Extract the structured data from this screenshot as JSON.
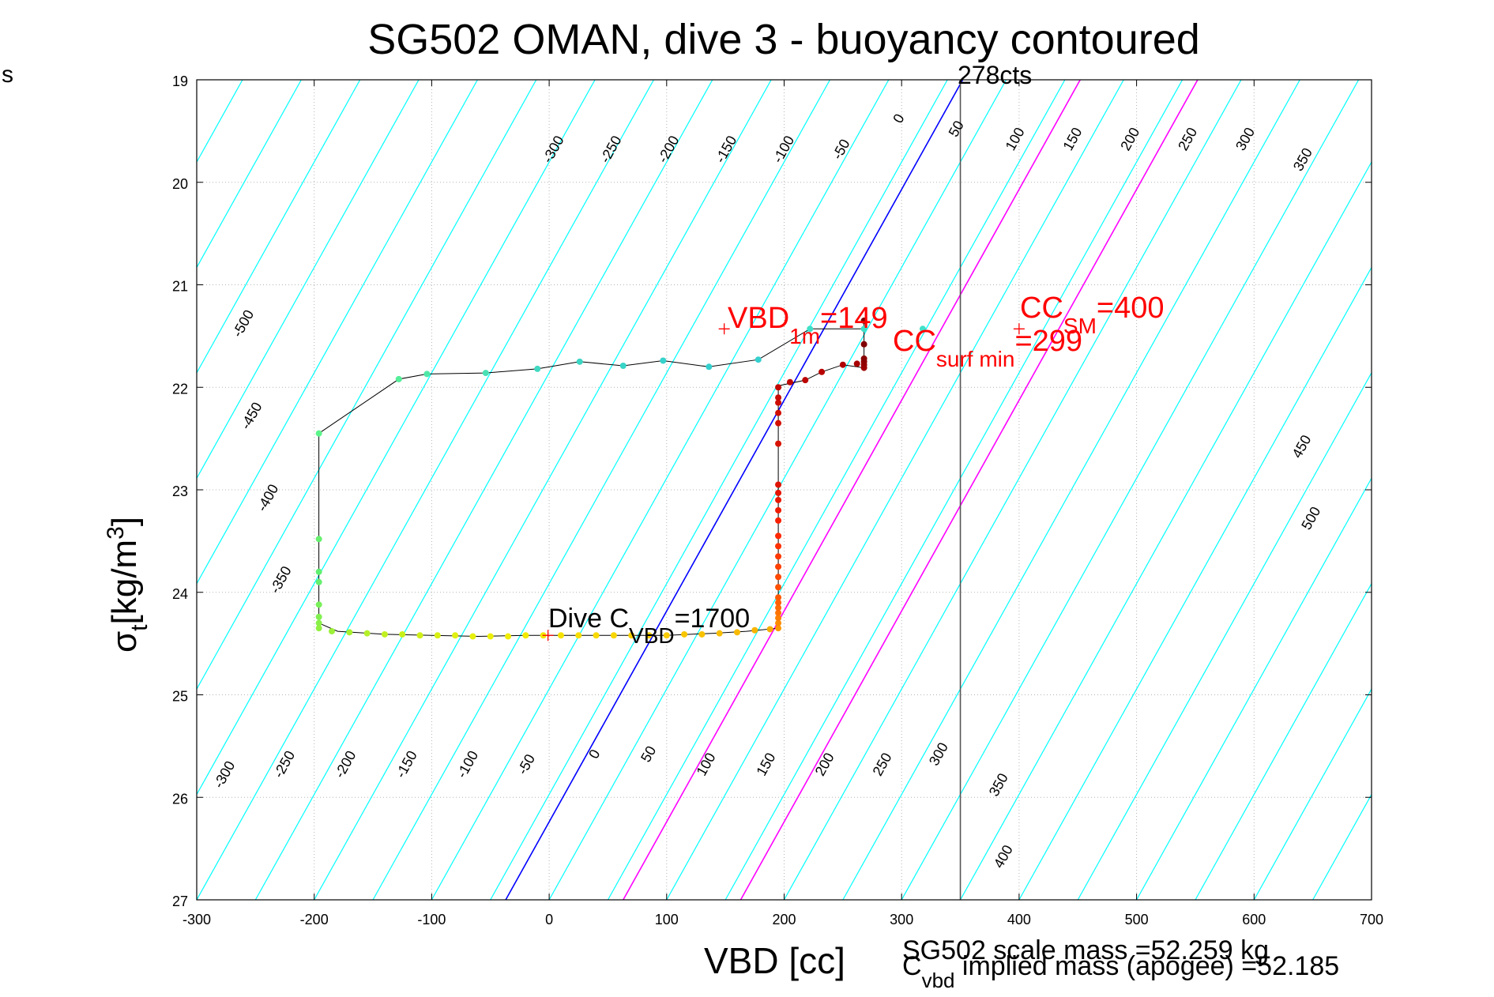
{
  "chart_data": {
    "type": "scatter",
    "title": "SG502 OMAN, dive 3 - buoyancy contoured",
    "xlabel": "VBD [cc]",
    "ylabel_main": "σ",
    "ylabel_sub": "t",
    "ylabel_unit": "[kg/m",
    "ylabel_sup": "3",
    "ylabel_close": "]",
    "corner_text": "s",
    "xlim": [
      -300,
      700
    ],
    "ylim": [
      27,
      19
    ],
    "y_reversed": true,
    "grid": true,
    "xticks": [
      "-300",
      "-200",
      "-100",
      "0",
      "100",
      "200",
      "300",
      "400",
      "500",
      "600",
      "700"
    ],
    "yticks": [
      "19",
      "20",
      "21",
      "22",
      "23",
      "24",
      "25",
      "26",
      "27"
    ],
    "contour_slope_cc_per_sigma": 32.6,
    "contour_levels": [
      -500,
      -450,
      -400,
      -350,
      -300,
      -250,
      -200,
      -150,
      -100,
      -50,
      0,
      50,
      100,
      150,
      200,
      250,
      300,
      350,
      400,
      450,
      500
    ],
    "contour_labels_top": [
      {
        "text": "-300",
        "x": 7,
        "y": 19.7
      },
      {
        "text": "-250",
        "x": 56,
        "y": 19.7
      },
      {
        "text": "-200",
        "x": 105,
        "y": 19.7
      },
      {
        "text": "-150",
        "x": 154,
        "y": 19.7
      },
      {
        "text": "-100",
        "x": 203,
        "y": 19.7
      },
      {
        "text": "-50",
        "x": 252,
        "y": 19.7
      },
      {
        "text": "0",
        "x": 301,
        "y": 19.4
      },
      {
        "text": "50",
        "x": 350,
        "y": 19.5
      },
      {
        "text": "100",
        "x": 400,
        "y": 19.6
      },
      {
        "text": "150",
        "x": 449,
        "y": 19.6
      },
      {
        "text": "200",
        "x": 498,
        "y": 19.6
      },
      {
        "text": "250",
        "x": 547,
        "y": 19.6
      },
      {
        "text": "300",
        "x": 596,
        "y": 19.6
      },
      {
        "text": "350",
        "x": 645,
        "y": 19.8
      }
    ],
    "contour_labels_left": [
      {
        "text": "-500",
        "x": -257,
        "y": 21.4
      },
      {
        "text": "-450",
        "x": -250,
        "y": 22.3
      },
      {
        "text": "-400",
        "x": -236,
        "y": 23.1
      },
      {
        "text": "-350",
        "x": -225,
        "y": 23.9
      }
    ],
    "contour_labels_right": [
      {
        "text": "450",
        "x": 644,
        "y": 22.6
      },
      {
        "text": "500",
        "x": 652,
        "y": 23.3
      }
    ],
    "contour_labels_bottom": [
      {
        "text": "-300",
        "x": -273,
        "y": 25.8
      },
      {
        "text": "-250",
        "x": -222,
        "y": 25.7
      },
      {
        "text": "-200",
        "x": -170,
        "y": 25.7
      },
      {
        "text": "-150",
        "x": -118,
        "y": 25.7
      },
      {
        "text": "-100",
        "x": -66,
        "y": 25.7
      },
      {
        "text": "-50",
        "x": -16,
        "y": 25.7
      },
      {
        "text": "0",
        "x": 42,
        "y": 25.6
      },
      {
        "text": "50",
        "x": 88,
        "y": 25.6
      },
      {
        "text": "100",
        "x": 137,
        "y": 25.7
      },
      {
        "text": "150",
        "x": 188,
        "y": 25.7
      },
      {
        "text": "200",
        "x": 238,
        "y": 25.7
      },
      {
        "text": "250",
        "x": 287,
        "y": 25.7
      },
      {
        "text": "300",
        "x": 335,
        "y": 25.6
      },
      {
        "text": "350",
        "x": 386,
        "y": 25.9
      },
      {
        "text": "400",
        "x": 390,
        "y": 26.6
      }
    ],
    "blue_line": {
      "x1": -37,
      "y1": 27,
      "x2": 352,
      "y2": 19
    },
    "magenta_lines": [
      {
        "x1": 63,
        "y1": 27,
        "x2": 452,
        "y2": 19
      },
      {
        "x1": 163,
        "y1": 27,
        "x2": 552,
        "y2": 19
      }
    ],
    "vertical_line": {
      "x": 350,
      "label": "278cts"
    },
    "dive_path": [
      [
        -196,
        22.45
      ],
      [
        -128,
        21.92
      ],
      [
        -104,
        21.87
      ],
      [
        -54,
        21.86
      ],
      [
        -10,
        21.82
      ],
      [
        26,
        21.75
      ],
      [
        63,
        21.79
      ],
      [
        97,
        21.74
      ],
      [
        136,
        21.8
      ],
      [
        178,
        21.73
      ],
      [
        222,
        21.43
      ],
      [
        268,
        21.43
      ],
      [
        268,
        21.35
      ],
      [
        268,
        21.58
      ],
      [
        268,
        21.75
      ],
      [
        268,
        21.81
      ],
      [
        250,
        21.78
      ],
      [
        232,
        21.85
      ],
      [
        218,
        21.93
      ],
      [
        197,
        21.98
      ],
      [
        195,
        22.0
      ],
      [
        195,
        22.3
      ],
      [
        195,
        22.6
      ],
      [
        195,
        23.0
      ],
      [
        195,
        23.3
      ],
      [
        195,
        23.6
      ],
      [
        195,
        23.9
      ],
      [
        195,
        24.1
      ],
      [
        195,
        24.35
      ],
      [
        168,
        24.38
      ],
      [
        140,
        24.4
      ],
      [
        100,
        24.42
      ],
      [
        60,
        24.42
      ],
      [
        20,
        24.42
      ],
      [
        -20,
        24.42
      ],
      [
        -60,
        24.43
      ],
      [
        -100,
        24.42
      ],
      [
        -140,
        24.41
      ],
      [
        -180,
        24.38
      ],
      [
        -196,
        24.3
      ],
      [
        -196,
        24.0
      ],
      [
        -196,
        23.6
      ],
      [
        -196,
        22.45
      ]
    ],
    "series": [
      {
        "name": "descent",
        "points": [
          {
            "x": -196,
            "y": 22.45,
            "c": "#5cf58a"
          },
          {
            "x": -128,
            "y": 21.92,
            "c": "#55ee99"
          },
          {
            "x": -104,
            "y": 21.87,
            "c": "#50e8a8"
          },
          {
            "x": -54,
            "y": 21.86,
            "c": "#48e0b4"
          },
          {
            "x": -10,
            "y": 21.82,
            "c": "#40d8c0"
          },
          {
            "x": 26,
            "y": 21.75,
            "c": "#3cd6c4"
          },
          {
            "x": 63,
            "y": 21.79,
            "c": "#38d4c8"
          },
          {
            "x": 97,
            "y": 21.74,
            "c": "#36d2cc"
          },
          {
            "x": 136,
            "y": 21.8,
            "c": "#34d0ce"
          },
          {
            "x": 178,
            "y": 21.73,
            "c": "#34d0ce"
          },
          {
            "x": 222,
            "y": 21.43,
            "c": "#40e0c8"
          },
          {
            "x": 268,
            "y": 21.43,
            "c": "#40e0c8"
          },
          {
            "x": 318,
            "y": 21.43,
            "c": "#40e0c8"
          },
          {
            "x": -196,
            "y": 23.48,
            "c": "#66f06e"
          },
          {
            "x": -196,
            "y": 23.8,
            "c": "#60f070"
          },
          {
            "x": -196,
            "y": 23.9,
            "c": "#66f06e"
          },
          {
            "x": -196,
            "y": 24.12,
            "c": "#78f058"
          },
          {
            "x": -196,
            "y": 24.24,
            "c": "#80f050"
          },
          {
            "x": -196,
            "y": 24.3,
            "c": "#88f048"
          },
          {
            "x": -196,
            "y": 24.35,
            "c": "#90f040"
          },
          {
            "x": -185,
            "y": 24.38,
            "c": "#9cf038"
          },
          {
            "x": -170,
            "y": 24.39,
            "c": "#a8f030"
          },
          {
            "x": -155,
            "y": 24.4,
            "c": "#b4f028"
          },
          {
            "x": -140,
            "y": 24.41,
            "c": "#c0f020"
          },
          {
            "x": -125,
            "y": 24.41,
            "c": "#c8f01c"
          },
          {
            "x": -110,
            "y": 24.42,
            "c": "#d0f018"
          },
          {
            "x": -95,
            "y": 24.42,
            "c": "#d8f014"
          },
          {
            "x": -80,
            "y": 24.42,
            "c": "#e0f010"
          },
          {
            "x": -65,
            "y": 24.43,
            "c": "#e6f00c"
          },
          {
            "x": -50,
            "y": 24.43,
            "c": "#ecf008"
          },
          {
            "x": -35,
            "y": 24.43,
            "c": "#f0ee04"
          },
          {
            "x": -20,
            "y": 24.42,
            "c": "#f2ea00"
          },
          {
            "x": -5,
            "y": 24.42,
            "c": "#f4e600"
          },
          {
            "x": 10,
            "y": 24.42,
            "c": "#f6e200"
          },
          {
            "x": 25,
            "y": 24.42,
            "c": "#f8de00"
          },
          {
            "x": 40,
            "y": 24.42,
            "c": "#f8da00"
          },
          {
            "x": 55,
            "y": 24.42,
            "c": "#f8d600"
          },
          {
            "x": 70,
            "y": 24.42,
            "c": "#f8d200"
          },
          {
            "x": 85,
            "y": 24.42,
            "c": "#f8ce00"
          },
          {
            "x": 100,
            "y": 24.42,
            "c": "#f8ca00"
          },
          {
            "x": 115,
            "y": 24.41,
            "c": "#f8c600"
          },
          {
            "x": 130,
            "y": 24.41,
            "c": "#f8c200"
          },
          {
            "x": 145,
            "y": 24.4,
            "c": "#f8be00"
          },
          {
            "x": 160,
            "y": 24.39,
            "c": "#f8ba00"
          },
          {
            "x": 175,
            "y": 24.37,
            "c": "#f8b400"
          },
          {
            "x": 188,
            "y": 24.36,
            "c": "#f8ae00"
          }
        ]
      },
      {
        "name": "ascent",
        "points": [
          {
            "x": 195,
            "y": 24.35,
            "c": "#ff9900"
          },
          {
            "x": 195,
            "y": 24.3,
            "c": "#ff8c00"
          },
          {
            "x": 195,
            "y": 24.25,
            "c": "#ff8000"
          },
          {
            "x": 195,
            "y": 24.2,
            "c": "#ff7400"
          },
          {
            "x": 195,
            "y": 24.15,
            "c": "#ff6a00"
          },
          {
            "x": 195,
            "y": 24.1,
            "c": "#ff6000"
          },
          {
            "x": 195,
            "y": 24.05,
            "c": "#ff5800"
          },
          {
            "x": 195,
            "y": 23.95,
            "c": "#ff5000"
          },
          {
            "x": 195,
            "y": 23.85,
            "c": "#ff4800"
          },
          {
            "x": 195,
            "y": 23.75,
            "c": "#ff4000"
          },
          {
            "x": 195,
            "y": 23.65,
            "c": "#ff3800"
          },
          {
            "x": 195,
            "y": 23.55,
            "c": "#ff3000"
          },
          {
            "x": 195,
            "y": 23.45,
            "c": "#ff2800"
          },
          {
            "x": 195,
            "y": 23.3,
            "c": "#f82000"
          },
          {
            "x": 195,
            "y": 23.2,
            "c": "#f01c00"
          },
          {
            "x": 195,
            "y": 23.1,
            "c": "#e81800"
          },
          {
            "x": 195,
            "y": 23.03,
            "c": "#e41600"
          },
          {
            "x": 195,
            "y": 22.95,
            "c": "#e01400"
          },
          {
            "x": 195,
            "y": 22.55,
            "c": "#d81200"
          },
          {
            "x": 195,
            "y": 22.35,
            "c": "#d41000"
          },
          {
            "x": 195,
            "y": 22.25,
            "c": "#d00e00"
          },
          {
            "x": 195,
            "y": 22.15,
            "c": "#cc0c00"
          },
          {
            "x": 195,
            "y": 22.1,
            "c": "#c80a00"
          },
          {
            "x": 195,
            "y": 22.0,
            "c": "#c40800"
          },
          {
            "x": 205,
            "y": 21.95,
            "c": "#c00600"
          },
          {
            "x": 218,
            "y": 21.93,
            "c": "#bc0400"
          },
          {
            "x": 232,
            "y": 21.85,
            "c": "#b80200"
          },
          {
            "x": 250,
            "y": 21.78,
            "c": "#b00000"
          },
          {
            "x": 262,
            "y": 21.77,
            "c": "#a80000"
          },
          {
            "x": 268,
            "y": 21.81,
            "c": "#a00000"
          },
          {
            "x": 268,
            "y": 21.78,
            "c": "#980000"
          },
          {
            "x": 268,
            "y": 21.75,
            "c": "#900000"
          },
          {
            "x": 268,
            "y": 21.72,
            "c": "#880000"
          },
          {
            "x": 268,
            "y": 21.58,
            "c": "#800000"
          },
          {
            "x": 268,
            "y": 21.35,
            "c": "#780000"
          }
        ]
      }
    ],
    "red_markers": [
      {
        "x": 149,
        "y": 21.43
      },
      {
        "x": 400,
        "y": 21.43
      },
      {
        "x": -1,
        "y": 24.42
      }
    ],
    "annotations": {
      "vbd_1m_main": "VBD",
      "vbd_1m_sub": "1m",
      "vbd_1m_val": "=149",
      "cc_sm_main": "CC",
      "cc_sm_sub": "SM",
      "cc_sm_val": "=400",
      "cc_surf_main": "CC",
      "cc_surf_sub": "surf min",
      "cc_surf_val": "=299",
      "dive_c_main": "Dive C",
      "dive_c_sub": "VBD",
      "dive_c_val": "=1700"
    },
    "footer": {
      "scale_mass": "SG502 scale mass =52.259 kg",
      "implied_c": "C",
      "implied_sub": "vbd",
      "implied_rest": " implied mass (apogee) =52.185"
    },
    "colors": {
      "contour": "#00ffff",
      "blue": "#0000ff",
      "magenta": "#ff00ff",
      "annotation": "#ff0000",
      "grid": "#c8c8c8",
      "path": "#000000"
    }
  }
}
